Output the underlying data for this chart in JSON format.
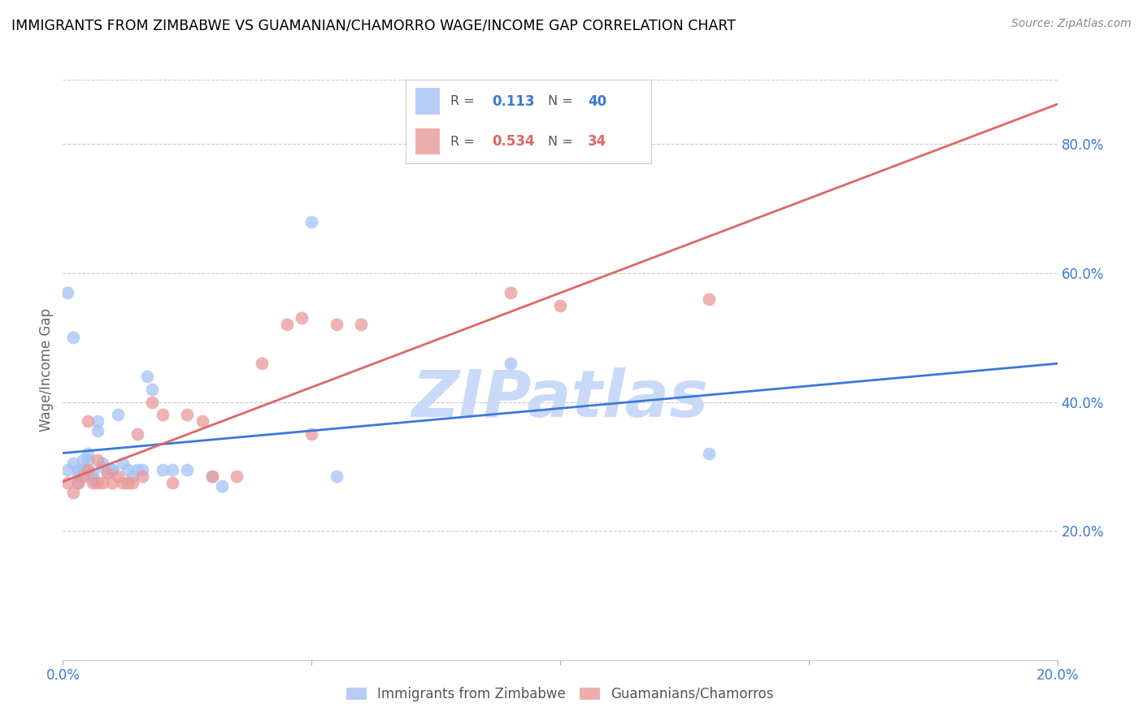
{
  "title": "IMMIGRANTS FROM ZIMBABWE VS GUAMANIAN/CHAMORRO WAGE/INCOME GAP CORRELATION CHART",
  "source": "Source: ZipAtlas.com",
  "ylabel": "Wage/Income Gap",
  "y_tick_values": [
    0.2,
    0.4,
    0.6,
    0.8
  ],
  "x_tick_vals": [
    0.0,
    0.05,
    0.1,
    0.15,
    0.2
  ],
  "x_tick_labels": [
    "0.0%",
    "",
    "",
    "",
    "20.0%"
  ],
  "blue_R": "0.113",
  "blue_N": "40",
  "pink_R": "0.534",
  "pink_N": "34",
  "blue_label": "Immigrants from Zimbabwe",
  "pink_label": "Guamanians/Chamorros",
  "blue_color": "#a4c2f4",
  "pink_color": "#ea9999",
  "blue_line_color": "#3c78d8",
  "pink_line_color": "#e06666",
  "watermark_color": "#c9daf8",
  "watermark_text": "ZIPatlas",
  "grid_color": "#cccccc",
  "background_color": "#ffffff",
  "blue_x": [
    0.001,
    0.001,
    0.002,
    0.002,
    0.003,
    0.003,
    0.003,
    0.004,
    0.004,
    0.004,
    0.005,
    0.005,
    0.005,
    0.006,
    0.006,
    0.006,
    0.007,
    0.007,
    0.008,
    0.008,
    0.009,
    0.01,
    0.01,
    0.011,
    0.012,
    0.013,
    0.014,
    0.015,
    0.016,
    0.017,
    0.018,
    0.02,
    0.022,
    0.025,
    0.03,
    0.032,
    0.05,
    0.055,
    0.09,
    0.13
  ],
  "blue_y": [
    0.295,
    0.57,
    0.305,
    0.5,
    0.285,
    0.295,
    0.275,
    0.31,
    0.295,
    0.285,
    0.32,
    0.31,
    0.295,
    0.285,
    0.29,
    0.28,
    0.37,
    0.355,
    0.305,
    0.3,
    0.29,
    0.295,
    0.295,
    0.38,
    0.305,
    0.295,
    0.285,
    0.295,
    0.295,
    0.44,
    0.42,
    0.295,
    0.295,
    0.295,
    0.285,
    0.27,
    0.68,
    0.285,
    0.46,
    0.32
  ],
  "pink_x": [
    0.001,
    0.002,
    0.003,
    0.004,
    0.005,
    0.005,
    0.006,
    0.007,
    0.007,
    0.008,
    0.009,
    0.01,
    0.011,
    0.012,
    0.013,
    0.014,
    0.015,
    0.016,
    0.018,
    0.02,
    0.022,
    0.025,
    0.028,
    0.03,
    0.035,
    0.04,
    0.045,
    0.048,
    0.05,
    0.055,
    0.06,
    0.09,
    0.1,
    0.13
  ],
  "pink_y": [
    0.275,
    0.26,
    0.275,
    0.285,
    0.295,
    0.37,
    0.275,
    0.31,
    0.275,
    0.275,
    0.29,
    0.275,
    0.285,
    0.275,
    0.275,
    0.275,
    0.35,
    0.285,
    0.4,
    0.38,
    0.275,
    0.38,
    0.37,
    0.285,
    0.285,
    0.46,
    0.52,
    0.53,
    0.35,
    0.52,
    0.52,
    0.57,
    0.55,
    0.56
  ],
  "xlim": [
    0.0,
    0.2
  ],
  "ylim": [
    0.0,
    0.9
  ]
}
